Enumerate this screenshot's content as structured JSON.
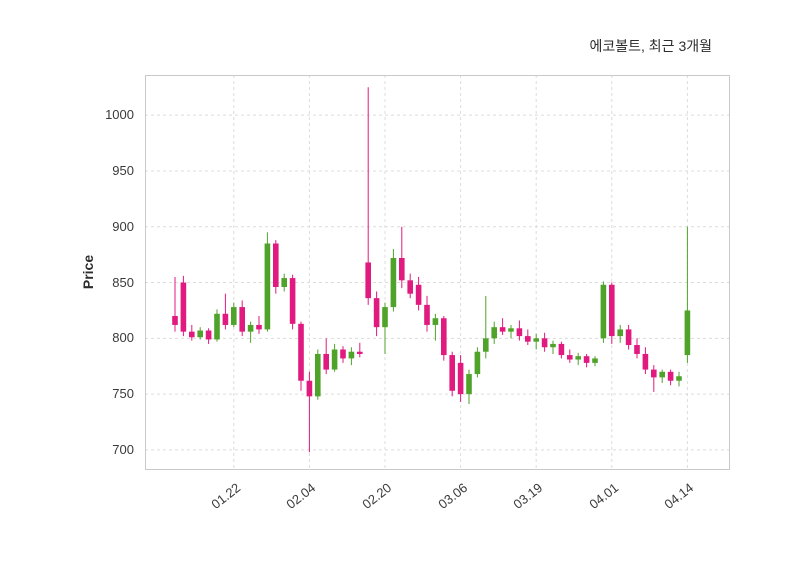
{
  "title": "에코볼트, 최근 3개월",
  "ylabel": "Price",
  "chart_data": {
    "type": "candlestick",
    "title": "에코볼트, 최근 3개월",
    "xlabel": "",
    "ylabel": "Price",
    "grid": true,
    "ylim": [
      682,
      1036
    ],
    "y_ticks": [
      700,
      750,
      800,
      850,
      900,
      950,
      1000
    ],
    "x_ticks": [
      {
        "label": "01.22",
        "index": 7
      },
      {
        "label": "02.04",
        "index": 16
      },
      {
        "label": "02.20",
        "index": 25
      },
      {
        "label": "03.06",
        "index": 34
      },
      {
        "label": "03.19",
        "index": 43
      },
      {
        "label": "04.01",
        "index": 52
      },
      {
        "label": "04.14",
        "index": 61
      }
    ],
    "up_color": "#4fa32a",
    "down_color": "#e01a7e",
    "grid_color": "#dcdcdc",
    "border_color": "#c9c9c9",
    "ohlc_format": [
      "open",
      "high",
      "low",
      "close"
    ],
    "ohlc": [
      [
        820,
        855,
        806,
        812
      ],
      [
        850,
        856,
        802,
        806
      ],
      [
        806,
        812,
        798,
        801
      ],
      [
        801,
        810,
        799,
        807
      ],
      [
        807,
        809,
        795,
        799
      ],
      [
        799,
        826,
        797,
        822
      ],
      [
        822,
        840,
        808,
        812
      ],
      [
        812,
        832,
        810,
        828
      ],
      [
        828,
        834,
        802,
        806
      ],
      [
        806,
        815,
        796,
        812
      ],
      [
        812,
        820,
        804,
        808
      ],
      [
        808,
        895,
        806,
        885
      ],
      [
        885,
        888,
        840,
        846
      ],
      [
        846,
        858,
        842,
        854
      ],
      [
        854,
        857,
        808,
        813
      ],
      [
        813,
        815,
        753,
        762
      ],
      [
        762,
        770,
        698,
        748
      ],
      [
        748,
        790,
        745,
        786
      ],
      [
        786,
        800,
        768,
        772
      ],
      [
        772,
        795,
        770,
        790
      ],
      [
        790,
        793,
        778,
        782
      ],
      [
        782,
        792,
        776,
        788
      ],
      [
        788,
        796,
        783,
        786
      ],
      [
        868,
        1025,
        830,
        836
      ],
      [
        836,
        842,
        802,
        810
      ],
      [
        810,
        832,
        786,
        828
      ],
      [
        828,
        880,
        824,
        872
      ],
      [
        872,
        900,
        845,
        852
      ],
      [
        852,
        858,
        836,
        840
      ],
      [
        848,
        855,
        825,
        830
      ],
      [
        830,
        838,
        806,
        812
      ],
      [
        812,
        822,
        798,
        818
      ],
      [
        818,
        820,
        780,
        785
      ],
      [
        785,
        788,
        748,
        753
      ],
      [
        778,
        785,
        743,
        750
      ],
      [
        750,
        772,
        741,
        768
      ],
      [
        768,
        792,
        765,
        788
      ],
      [
        788,
        838,
        782,
        800
      ],
      [
        800,
        815,
        795,
        810
      ],
      [
        810,
        818,
        803,
        806
      ],
      [
        806,
        812,
        800,
        809
      ],
      [
        809,
        816,
        798,
        802
      ],
      [
        802,
        808,
        794,
        797
      ],
      [
        797,
        804,
        790,
        800
      ],
      [
        800,
        805,
        788,
        792
      ],
      [
        792,
        798,
        786,
        795
      ],
      [
        795,
        797,
        782,
        785
      ],
      [
        785,
        790,
        778,
        781
      ],
      [
        781,
        787,
        776,
        784
      ],
      [
        784,
        786,
        774,
        778
      ],
      [
        778,
        784,
        775,
        782
      ],
      [
        800,
        851,
        796,
        848
      ],
      [
        848,
        850,
        795,
        802
      ],
      [
        802,
        812,
        796,
        808
      ],
      [
        808,
        812,
        790,
        794
      ],
      [
        794,
        800,
        782,
        786
      ],
      [
        786,
        792,
        768,
        772
      ],
      [
        772,
        776,
        752,
        765
      ],
      [
        765,
        772,
        760,
        770
      ],
      [
        770,
        772,
        758,
        762
      ],
      [
        762,
        770,
        757,
        766
      ],
      [
        785,
        900,
        778,
        825
      ]
    ]
  }
}
